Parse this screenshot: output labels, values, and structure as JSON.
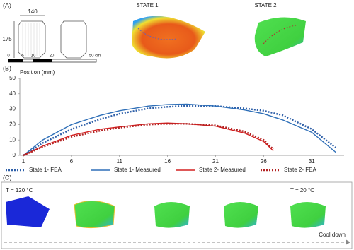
{
  "panel_a": {
    "label": "(A)",
    "width_dim": "140",
    "height_dim": "175",
    "scale_labels": [
      "0",
      "5",
      "10",
      "20",
      "50 cm"
    ],
    "state1": "STATE 1",
    "state2": "STATE 2"
  },
  "chart_data": {
    "type": "line",
    "panel_label": "(B)",
    "y_label": "Position (mm)",
    "xlim": [
      1,
      34
    ],
    "ylim": [
      0,
      50
    ],
    "xticks": [
      1,
      6,
      11,
      16,
      21,
      26,
      31
    ],
    "yticks": [
      0,
      10,
      20,
      30,
      40,
      50
    ],
    "grid": false,
    "legend": "bottom",
    "series": [
      {
        "name": "State 1- FEA",
        "color": "#2e5fa8",
        "style": "dotted",
        "x": [
          1,
          3,
          6,
          9,
          11,
          14,
          16,
          18,
          21,
          24,
          26,
          28,
          31,
          33.5
        ],
        "values": [
          0,
          8,
          17,
          23.5,
          27,
          30.5,
          31.5,
          32.2,
          32,
          30.5,
          29,
          26,
          17,
          5
        ]
      },
      {
        "name": "State 1- Measured",
        "color": "#2e6fb8",
        "style": "solid",
        "x": [
          1,
          3,
          6,
          9,
          11,
          14,
          16,
          18,
          21,
          24,
          26,
          28,
          31,
          33.5
        ],
        "values": [
          0,
          10,
          20,
          26,
          29,
          32,
          33,
          33.3,
          32,
          29.5,
          27,
          23,
          15,
          2
        ]
      },
      {
        "name": "State 2- Measured",
        "color": "#d42020",
        "style": "solid",
        "x": [
          1,
          3,
          6,
          9,
          11,
          14,
          16,
          18,
          21,
          24,
          26,
          27
        ],
        "values": [
          0,
          6,
          13,
          17,
          18.5,
          20.5,
          21,
          20.5,
          19,
          14.5,
          9,
          3
        ]
      },
      {
        "name": "State 2- FEA",
        "color": "#b22222",
        "style": "dotted",
        "x": [
          1,
          3,
          6,
          9,
          11,
          14,
          16,
          18,
          21,
          24,
          26,
          27
        ],
        "values": [
          0,
          5.5,
          12,
          16,
          18,
          20,
          20.5,
          20.5,
          19.5,
          15.5,
          10,
          4
        ]
      }
    ]
  },
  "panel_c": {
    "label": "(C)",
    "temp_start": "T = 120 °C",
    "temp_end": "T = 20 °C",
    "arrow_label": "Cool down"
  }
}
